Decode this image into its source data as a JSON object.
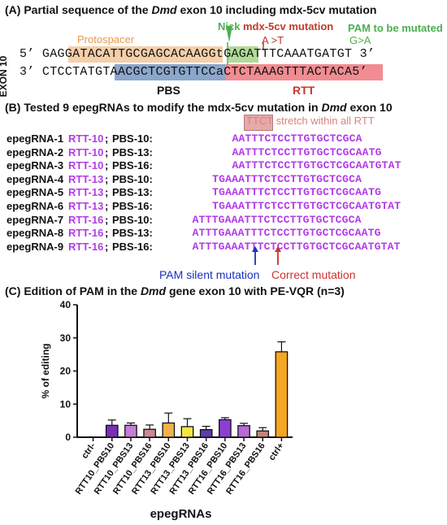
{
  "panelA": {
    "title_prefix": "(A) Partial sequence of the ",
    "title_gene": "Dmd",
    "title_suffix": " exon 10  including mdx-5cv mutation",
    "exon_label": "EXON 10",
    "top_left_end": "5’",
    "top_right_end": "3’",
    "bottom_left_end": "3’",
    "bottom_right_end": "5’",
    "top_seq_a": "GAGG",
    "top_protospacer": "ATACATTGCGAGCACAAGG",
    "top_nick_base": "t",
    "top_pam": "GAG",
    "top_seq_b": "ATTTCAAATGATGT",
    "bottom_seq_a": "CTCCTATGTA",
    "bottom_pbs": "ACGCTCGTGT",
    "bottom_rtt": "TCCaCTCTAAAGTTTAC",
    "bottom_seq_b": "TACA",
    "protospacer_label": "Protospacer",
    "nick_label": "Nick",
    "mutation_label": "mdx-5cv mutation",
    "mutation_change": "A >T",
    "pam_label_1": "PAM to be mutated",
    "pam_label_2": "G>A",
    "pbs_label": "PBS",
    "rtt_label": "RTT"
  },
  "panelB": {
    "title_prefix": "(B) Tested 9 epegRNAs to modify the mdx-5cv mutation in ",
    "title_gene": "Dmd",
    "title_suffix": " exon 10",
    "stretch_label": "TTCT stretch within all RTT",
    "pam_silent_label": "PAM silent mutation",
    "correct_label": "Correct mutation",
    "rows": [
      {
        "name": "epegRNA-1",
        "rtt": "RTT-10",
        "pbs": "PBS-10:",
        "seq": "AATTTCTCCTTGTGCTCGCA"
      },
      {
        "name": "epegRNA-2",
        "rtt": "RTT-10",
        "pbs": "PBS-13:",
        "seq": "AATTTCTCCTTGTGCTCGCAATG"
      },
      {
        "name": "epegRNA-3",
        "rtt": "RTT-10",
        "pbs": "PBS-16:",
        "seq": "AATTTCTCCTTGTGCTCGCAATGTAT"
      },
      {
        "name": "epegRNA-4",
        "rtt": "RTT-13",
        "pbs": "PBS-10:",
        "seq": "TGAAATTTCTCCTTGTGCTCGCA"
      },
      {
        "name": "epegRNA-5",
        "rtt": "RTT-13",
        "pbs": "PBS-13:",
        "seq": "TGAAATTTCTCCTTGTGCTCGCAATG"
      },
      {
        "name": "epegRNA-6",
        "rtt": "RTT-13",
        "pbs": "PBS-16:",
        "seq": "TGAAATTTCTCCTTGTGCTCGCAATGTAT"
      },
      {
        "name": "epegRNA-7",
        "rtt": "RTT-16",
        "pbs": "PBS-10:",
        "seq": "ATTTGAAATTTCTCCTTGTGCTCGCA"
      },
      {
        "name": "epegRNA-8",
        "rtt": "RTT-16",
        "pbs": "PBS-13:",
        "seq": "ATTTGAAATTTCTCCTTGTGCTCGCAATG"
      },
      {
        "name": "epegRNA-9",
        "rtt": "RTT-16",
        "pbs": "PBS-16:",
        "seq": "ATTTGAAATTTCTCCTTGTGCTCGCAATGTAT"
      }
    ]
  },
  "panelC": {
    "title_prefix": "(C) Edition of PAM in the ",
    "title_gene": "Dmd",
    "title_suffix": " gene exon 10 with PE-VQR (n=3)"
  },
  "chart_data": {
    "type": "bar",
    "title": "Edition of PAM in the Dmd gene exon 10 with PE-VQR (n=3)",
    "xlabel": "epegRNAs",
    "ylabel": "% of editing",
    "ylim": [
      0,
      40
    ],
    "yticks": [
      0,
      10,
      20,
      30,
      40
    ],
    "categories": [
      "ctrl-",
      "RTT10_PBS10",
      "RTT10_PBS13",
      "RTT10_PBS16",
      "RTT13_PBS10",
      "RTT13_PBS13",
      "RTT13_PBS16",
      "RTT16_PBS10",
      "RTT16_PBS13",
      "RTT16_PBS16",
      "ctrl+"
    ],
    "values": [
      0.0,
      3.6,
      3.6,
      2.4,
      4.3,
      3.2,
      2.3,
      5.3,
      3.5,
      1.9,
      25.8
    ],
    "errors": [
      0.0,
      1.6,
      0.7,
      1.3,
      3.0,
      2.4,
      1.0,
      0.6,
      0.7,
      1.0,
      3.0
    ],
    "colors": [
      "#ffffff",
      "#7a2fb5",
      "#c77dd8",
      "#c9898f",
      "#f0b347",
      "#f5e642",
      "#5b3fa8",
      "#8a3fd0",
      "#b66bd6",
      "#c18579",
      "#f5a623"
    ],
    "grid": false
  }
}
